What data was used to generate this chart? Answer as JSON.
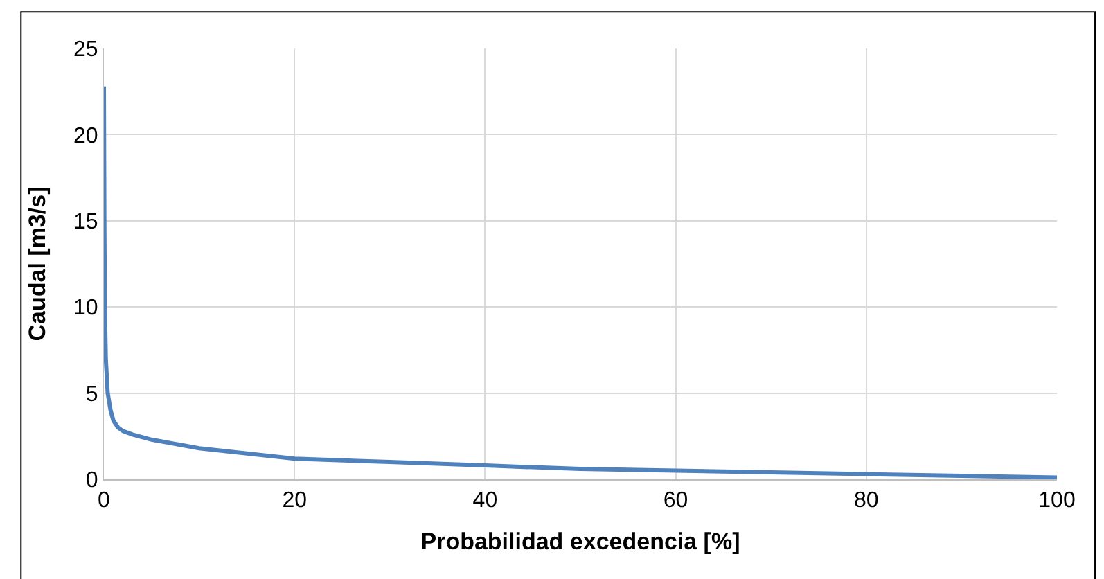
{
  "chart_data": {
    "type": "line",
    "xlabel": "Probabilidad excedencia [%]",
    "ylabel": "Caudal [m3/s]",
    "x": [
      0,
      0.05,
      0.1,
      0.2,
      0.4,
      0.7,
      1,
      1.5,
      2,
      3,
      5,
      8,
      10,
      15,
      20,
      30,
      40,
      50,
      60,
      70,
      80,
      90,
      100
    ],
    "series": [
      {
        "color": "#4f81bd",
        "values": [
          22.8,
          15,
          10,
          7,
          5,
          4,
          3.4,
          3.0,
          2.8,
          2.6,
          2.3,
          2.0,
          1.8,
          1.5,
          1.2,
          1.0,
          0.8,
          0.6,
          0.5,
          0.4,
          0.3,
          0.2,
          0.1
        ]
      }
    ],
    "xlim": [
      0,
      100
    ],
    "xticks": [
      0,
      20,
      40,
      60,
      80,
      100
    ],
    "ylim": [
      0,
      25
    ],
    "yticks": [
      0,
      5,
      10,
      15,
      20,
      25
    ],
    "grid": true,
    "marker": "none",
    "line_style": "solid"
  }
}
